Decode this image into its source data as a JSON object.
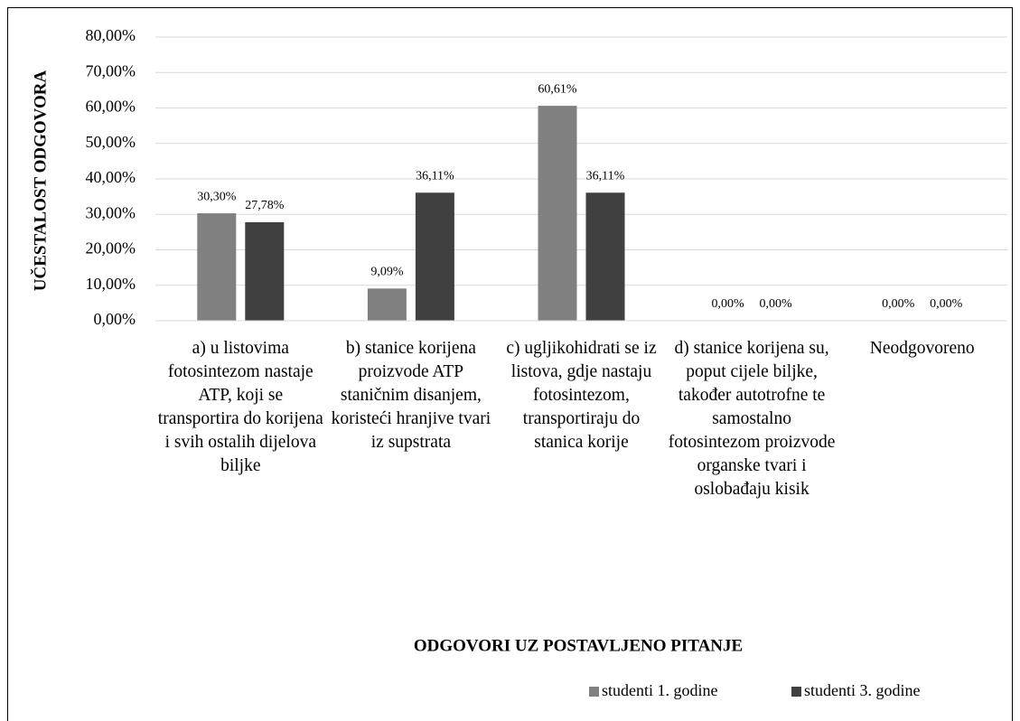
{
  "chart_data": {
    "type": "bar",
    "y_axis_title": "UČESTALOST ODGOVORA",
    "x_axis_title": "ODGOVORI UZ POSTAVLJENO PITANJE",
    "categories": [
      "a) u listovima fotosintezom nastaje ATP, koji se transportira do korijena i svih ostalih dijelova biljke",
      "b) stanice korijena proizvode ATP staničnim disanjem, koristeći hranjive tvari iz supstrata",
      "c) ugljikohidrati se iz listova, gdje nastaju fotosintezom, transportiraju do stanica korije",
      "d) stanice korijena su, poput cijele biljke, također autotrofne te samostalno fotosintezom proizvode organske tvari i oslobađaju kisik",
      "Neodgovoreno"
    ],
    "series": [
      {
        "name": "studenti 1. godine",
        "color": "#808080",
        "values": [
          30.3,
          9.09,
          60.61,
          0,
          0
        ],
        "value_labels": [
          "30,30%",
          "9,09%",
          "60,61%",
          "0,00%",
          "0,00%"
        ]
      },
      {
        "name": "studenti 3. godine",
        "color": "#404040",
        "values": [
          27.78,
          36.11,
          36.11,
          0,
          0
        ],
        "value_labels": [
          "27,78%",
          "36,11%",
          "36,11%",
          "0,00%",
          "0,00%"
        ]
      }
    ],
    "ylim": [
      0,
      80
    ],
    "yticks": [
      {
        "value": 0,
        "label": "0,00%"
      },
      {
        "value": 10,
        "label": "10,00%"
      },
      {
        "value": 20,
        "label": "20,00%"
      },
      {
        "value": 30,
        "label": "30,00%"
      },
      {
        "value": 40,
        "label": "40,00%"
      },
      {
        "value": 50,
        "label": "50,00%"
      },
      {
        "value": 60,
        "label": "60,00%"
      },
      {
        "value": 70,
        "label": "70,00%"
      },
      {
        "value": 80,
        "label": "80,00%"
      }
    ],
    "grid": true,
    "legend": "bottom-right"
  }
}
